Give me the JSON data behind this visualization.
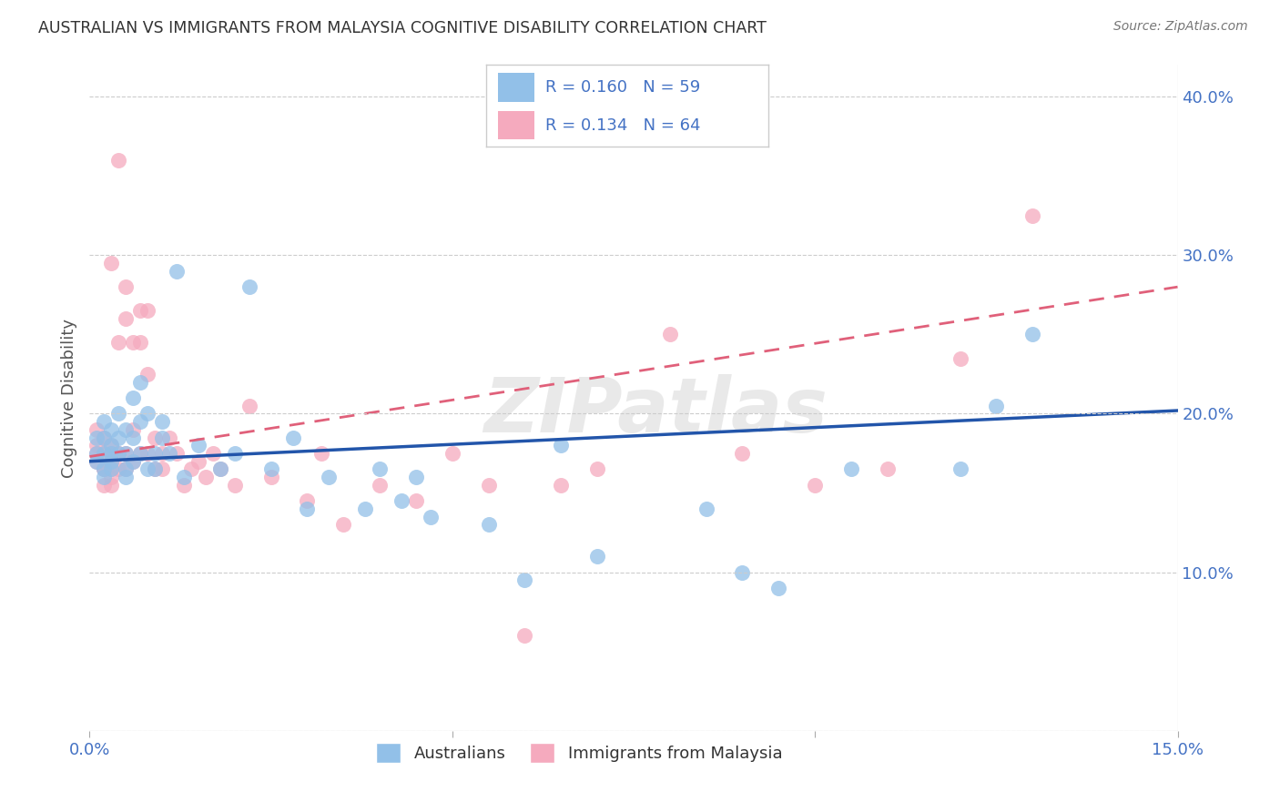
{
  "title": "AUSTRALIAN VS IMMIGRANTS FROM MALAYSIA COGNITIVE DISABILITY CORRELATION CHART",
  "source": "Source: ZipAtlas.com",
  "ylabel": "Cognitive Disability",
  "watermark": "ZIPatlas",
  "xlim": [
    0.0,
    0.15
  ],
  "ylim": [
    0.0,
    0.42
  ],
  "R_blue": 0.16,
  "N_blue": 59,
  "R_pink": 0.134,
  "N_pink": 64,
  "blue_color": "#92C0E8",
  "pink_color": "#F5AABE",
  "blue_line_color": "#2255AA",
  "pink_line_color": "#E0607A",
  "title_color": "#333333",
  "axis_label_color": "#4472C4",
  "legend_text_color": "#4472C4",
  "background_color": "#FFFFFF",
  "grid_color": "#CCCCCC",
  "blue_line_x0": 0.0,
  "blue_line_y0": 0.17,
  "blue_line_x1": 0.15,
  "blue_line_y1": 0.202,
  "pink_line_x0": 0.0,
  "pink_line_y0": 0.173,
  "pink_line_x1": 0.15,
  "pink_line_y1": 0.28,
  "blue_scatter_x": [
    0.001,
    0.001,
    0.001,
    0.002,
    0.002,
    0.002,
    0.002,
    0.002,
    0.003,
    0.003,
    0.003,
    0.003,
    0.003,
    0.004,
    0.004,
    0.004,
    0.005,
    0.005,
    0.005,
    0.005,
    0.006,
    0.006,
    0.006,
    0.007,
    0.007,
    0.007,
    0.008,
    0.008,
    0.009,
    0.009,
    0.01,
    0.01,
    0.011,
    0.012,
    0.013,
    0.015,
    0.018,
    0.02,
    0.022,
    0.025,
    0.028,
    0.03,
    0.033,
    0.038,
    0.04,
    0.043,
    0.045,
    0.047,
    0.055,
    0.06,
    0.065,
    0.07,
    0.085,
    0.09,
    0.095,
    0.105,
    0.12,
    0.125,
    0.13
  ],
  "blue_scatter_y": [
    0.17,
    0.175,
    0.185,
    0.165,
    0.175,
    0.185,
    0.195,
    0.16,
    0.17,
    0.18,
    0.175,
    0.165,
    0.19,
    0.175,
    0.2,
    0.185,
    0.16,
    0.175,
    0.19,
    0.165,
    0.185,
    0.21,
    0.17,
    0.22,
    0.195,
    0.175,
    0.165,
    0.2,
    0.175,
    0.165,
    0.195,
    0.185,
    0.175,
    0.29,
    0.16,
    0.18,
    0.165,
    0.175,
    0.28,
    0.165,
    0.185,
    0.14,
    0.16,
    0.14,
    0.165,
    0.145,
    0.16,
    0.135,
    0.13,
    0.095,
    0.18,
    0.11,
    0.14,
    0.1,
    0.09,
    0.165,
    0.165,
    0.205,
    0.25
  ],
  "pink_scatter_x": [
    0.001,
    0.001,
    0.001,
    0.001,
    0.002,
    0.002,
    0.002,
    0.002,
    0.002,
    0.003,
    0.003,
    0.003,
    0.003,
    0.003,
    0.003,
    0.003,
    0.004,
    0.004,
    0.004,
    0.004,
    0.005,
    0.005,
    0.005,
    0.005,
    0.006,
    0.006,
    0.006,
    0.007,
    0.007,
    0.007,
    0.008,
    0.008,
    0.008,
    0.009,
    0.009,
    0.01,
    0.01,
    0.011,
    0.012,
    0.013,
    0.014,
    0.015,
    0.016,
    0.017,
    0.018,
    0.02,
    0.022,
    0.025,
    0.03,
    0.032,
    0.035,
    0.04,
    0.045,
    0.05,
    0.055,
    0.06,
    0.065,
    0.07,
    0.08,
    0.09,
    0.1,
    0.11,
    0.12,
    0.13
  ],
  "pink_scatter_y": [
    0.17,
    0.18,
    0.175,
    0.19,
    0.165,
    0.175,
    0.185,
    0.165,
    0.155,
    0.17,
    0.295,
    0.18,
    0.175,
    0.165,
    0.155,
    0.16,
    0.245,
    0.175,
    0.36,
    0.165,
    0.28,
    0.175,
    0.165,
    0.26,
    0.19,
    0.17,
    0.245,
    0.265,
    0.175,
    0.245,
    0.225,
    0.265,
    0.175,
    0.165,
    0.185,
    0.175,
    0.165,
    0.185,
    0.175,
    0.155,
    0.165,
    0.17,
    0.16,
    0.175,
    0.165,
    0.155,
    0.205,
    0.16,
    0.145,
    0.175,
    0.13,
    0.155,
    0.145,
    0.175,
    0.155,
    0.06,
    0.155,
    0.165,
    0.25,
    0.175,
    0.155,
    0.165,
    0.235,
    0.325
  ]
}
